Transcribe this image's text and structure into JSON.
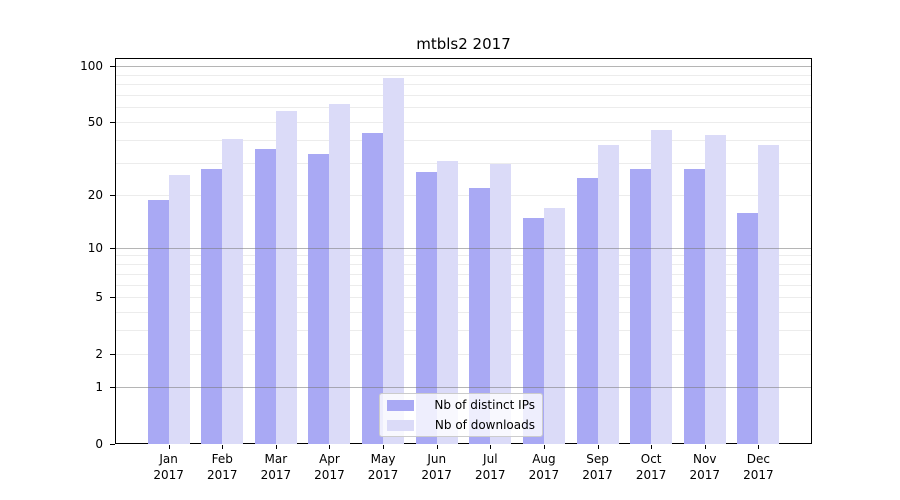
{
  "chart_data": {
    "type": "bar",
    "title": "mtbls2 2017",
    "categories": [
      "Jan",
      "Feb",
      "Mar",
      "Apr",
      "May",
      "Jun",
      "Jul",
      "Aug",
      "Sep",
      "Oct",
      "Nov",
      "Dec"
    ],
    "category_year_suffix": "2017",
    "series": [
      {
        "name": "Nb of distinct IPs",
        "color": "#a9a9f4",
        "values": [
          19,
          28,
          36,
          34,
          44,
          27,
          22,
          15,
          25,
          28,
          28,
          16
        ]
      },
      {
        "name": "Nb of downloads",
        "color": "#dbdbf8",
        "values": [
          26,
          41,
          58,
          63,
          87,
          31,
          30,
          17,
          38,
          46,
          43,
          38
        ]
      }
    ],
    "xlabel": "",
    "ylabel": "",
    "yscale": "log1p",
    "ylim": [
      0,
      110
    ],
    "yticks": [
      0,
      1,
      2,
      5,
      10,
      20,
      50,
      100
    ],
    "grid": true,
    "gridlines_minor": [
      2,
      3,
      4,
      5,
      6,
      7,
      8,
      9,
      20,
      30,
      40,
      50,
      60,
      70,
      80,
      90
    ],
    "gridlines_major_over_bars": [
      1,
      10,
      100
    ],
    "legend_position": "lower center"
  },
  "colors": {
    "grid_minor": "#ececec",
    "grid_major": "#787878",
    "axis": "#000000",
    "legend_border": "#cccccc",
    "legend_background": "rgba(255,255,255,0.8)"
  }
}
